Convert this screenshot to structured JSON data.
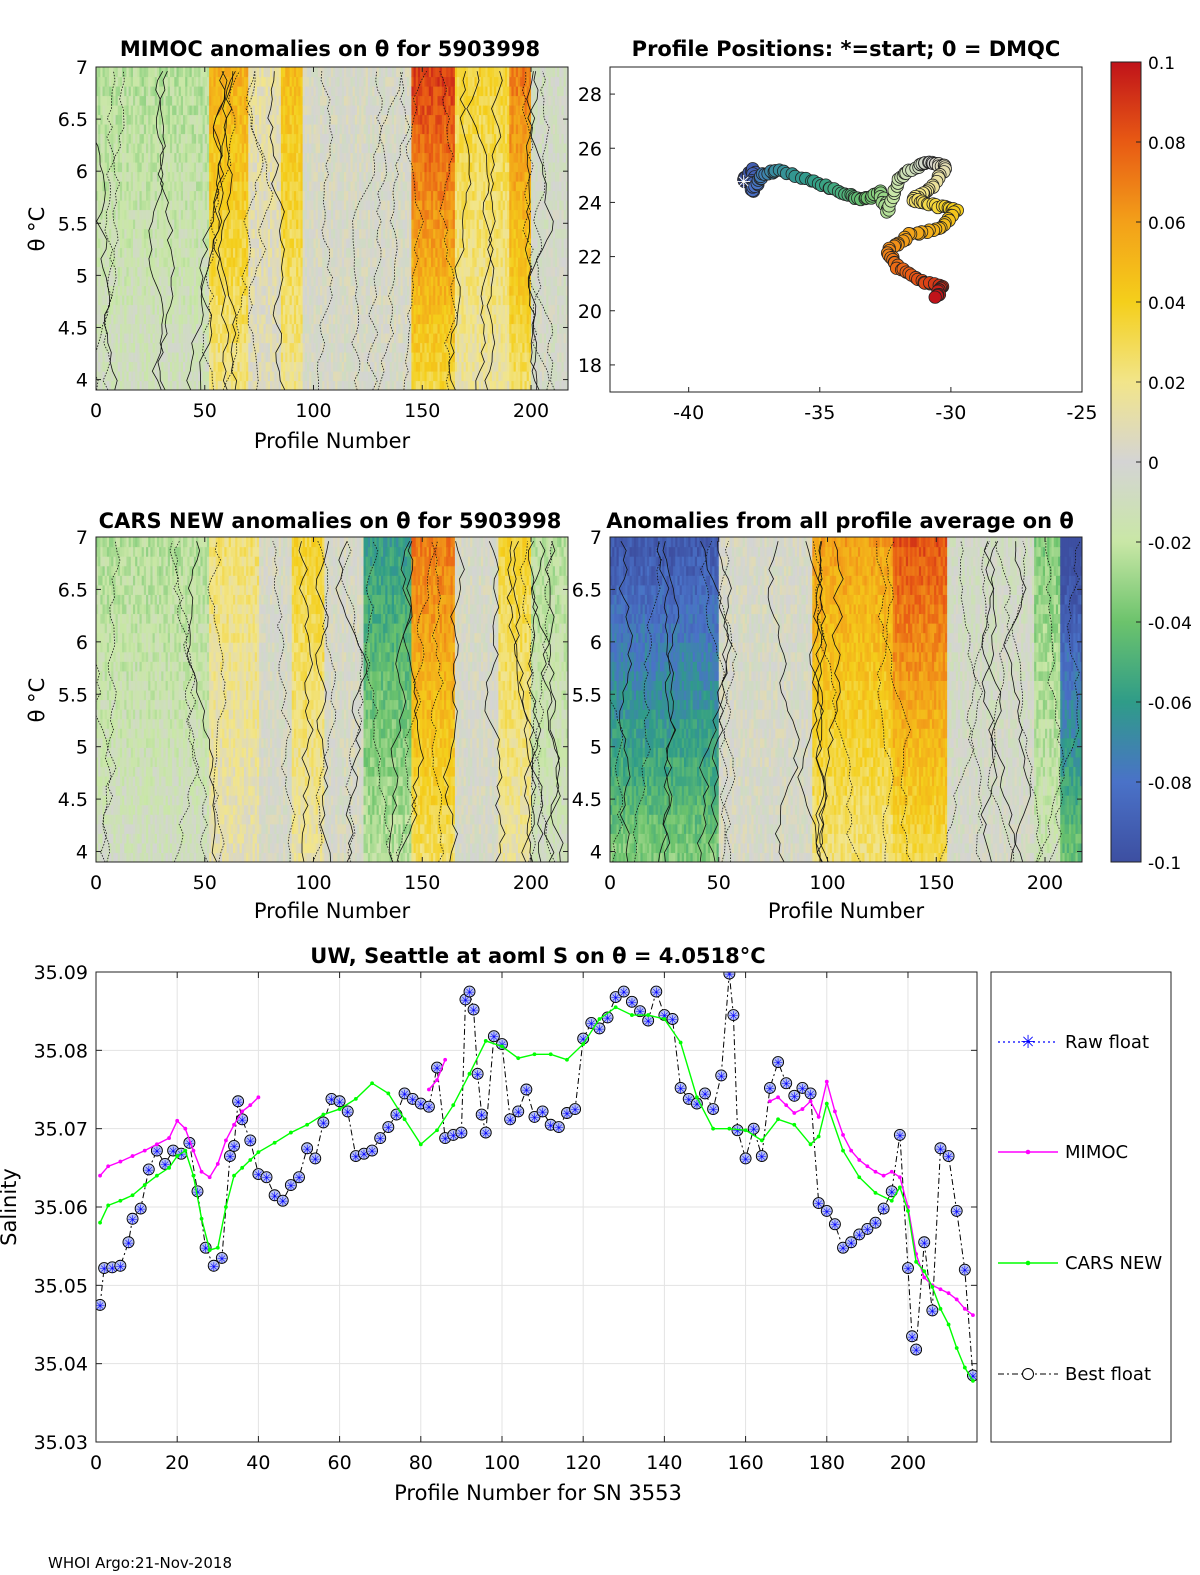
{
  "figure": {
    "footer": "WHOI Argo:21-Nov-2018",
    "colors": {
      "raw": "#0000ff",
      "mimoc": "#ff00ff",
      "cars": "#00ff00",
      "best": "#000000",
      "grid": "#e0e0e0",
      "gray": "#d2d2d2"
    }
  },
  "chart_data": [
    {
      "id": "mimoc",
      "type": "heatmap",
      "title": "MIMOC anomalies on θ  for 5903998",
      "xlabel": "Profile Number",
      "ylabel": "θ °C",
      "xlim": [
        0,
        217
      ],
      "ylim": [
        3.9,
        7.0
      ],
      "xticks": [
        "0",
        "50",
        "100",
        "150",
        "200"
      ],
      "yticks": [
        "4",
        "4.5",
        "5",
        "5.5",
        "6",
        "6.5",
        "7"
      ],
      "zlim": [
        -0.1,
        0.1
      ],
      "column_bands": [
        {
          "profiles": [
            0,
            52
          ],
          "anomaly": -0.02
        },
        {
          "profiles": [
            52,
            70
          ],
          "anomaly": 0.045
        },
        {
          "profiles": [
            70,
            85
          ],
          "anomaly": 0.01
        },
        {
          "profiles": [
            85,
            95
          ],
          "anomaly": 0.04
        },
        {
          "profiles": [
            95,
            145
          ],
          "anomaly": 0.0
        },
        {
          "profiles": [
            145,
            165
          ],
          "anomaly": 0.075
        },
        {
          "profiles": [
            165,
            190
          ],
          "anomaly": 0.03
        },
        {
          "profiles": [
            190,
            200
          ],
          "anomaly": 0.06
        },
        {
          "profiles": [
            200,
            217
          ],
          "anomaly": -0.005
        }
      ]
    },
    {
      "id": "positions",
      "type": "scatter",
      "title": "Profile Positions: *=start; 0 = DMQC",
      "xlim": [
        -43,
        -25
      ],
      "ylim": [
        17,
        29
      ],
      "xticks": [
        "-40",
        "-35",
        "-30",
        "-25"
      ],
      "yticks": [
        "18",
        "20",
        "22",
        "24",
        "26",
        "28"
      ],
      "start": {
        "lon": -37.9,
        "lat": 24.8
      },
      "track": [
        [
          -37.9,
          24.8
        ],
        [
          -37.5,
          25.2
        ],
        [
          -37.6,
          24.4
        ],
        [
          -37.2,
          25.0
        ],
        [
          -36.6,
          25.2
        ],
        [
          -35.0,
          24.7
        ],
        [
          -34.0,
          24.3
        ],
        [
          -33.3,
          24.1
        ],
        [
          -32.7,
          24.4
        ],
        [
          -32.4,
          23.6
        ],
        [
          -32.0,
          24.9
        ],
        [
          -31.2,
          25.4
        ],
        [
          -30.7,
          25.5
        ],
        [
          -30.2,
          25.3
        ],
        [
          -30.8,
          24.5
        ],
        [
          -31.5,
          24.1
        ],
        [
          -30.6,
          23.9
        ],
        [
          -29.8,
          23.7
        ],
        [
          -30.4,
          23.0
        ],
        [
          -31.6,
          22.8
        ],
        [
          -32.4,
          22.2
        ],
        [
          -32.0,
          21.6
        ],
        [
          -31.1,
          21.1
        ],
        [
          -30.3,
          20.9
        ],
        [
          -30.6,
          20.5
        ]
      ]
    },
    {
      "id": "cars",
      "type": "heatmap",
      "title": "CARS NEW anomalies on θ for 5903998",
      "xlabel": "Profile Number",
      "ylabel": "θ °C",
      "xlim": [
        0,
        217
      ],
      "ylim": [
        3.9,
        7.0
      ],
      "xticks": [
        "0",
        "50",
        "100",
        "150",
        "200"
      ],
      "yticks": [
        "4",
        "4.5",
        "5",
        "5.5",
        "6",
        "6.5",
        "7"
      ],
      "zlim": [
        -0.1,
        0.1
      ],
      "column_bands": [
        {
          "profiles": [
            0,
            52
          ],
          "anomaly": -0.02
        },
        {
          "profiles": [
            52,
            75
          ],
          "anomaly": 0.02
        },
        {
          "profiles": [
            75,
            90
          ],
          "anomaly": 0.0
        },
        {
          "profiles": [
            90,
            105
          ],
          "anomaly": 0.03
        },
        {
          "profiles": [
            105,
            123
          ],
          "anomaly": 0.0
        },
        {
          "profiles": [
            123,
            145
          ],
          "anomaly": -0.05
        },
        {
          "profiles": [
            145,
            165
          ],
          "anomaly": 0.06
        },
        {
          "profiles": [
            165,
            185
          ],
          "anomaly": 0.0
        },
        {
          "profiles": [
            185,
            200
          ],
          "anomaly": 0.03
        },
        {
          "profiles": [
            200,
            217
          ],
          "anomaly": -0.02
        }
      ]
    },
    {
      "id": "average",
      "type": "heatmap",
      "title": "Anomalies from all profile average on θ",
      "xlabel": "Profile Number",
      "xlim": [
        0,
        217
      ],
      "ylim": [
        3.9,
        7.0
      ],
      "xticks": [
        "0",
        "50",
        "100",
        "150",
        "200"
      ],
      "yticks": [
        "4",
        "4.5",
        "5",
        "5.5",
        "6",
        "6.5",
        "7"
      ],
      "zlim": [
        -0.1,
        0.1
      ],
      "column_bands": [
        {
          "profiles": [
            0,
            50
          ],
          "anomaly": -0.08
        },
        {
          "profiles": [
            50,
            93
          ],
          "anomaly": 0.0
        },
        {
          "profiles": [
            93,
            130
          ],
          "anomaly": 0.05
        },
        {
          "profiles": [
            130,
            155
          ],
          "anomaly": 0.07
        },
        {
          "profiles": [
            155,
            195
          ],
          "anomaly": -0.005
        },
        {
          "profiles": [
            195,
            207
          ],
          "anomaly": -0.03
        },
        {
          "profiles": [
            207,
            217
          ],
          "anomaly": -0.09
        }
      ]
    },
    {
      "id": "colorbar",
      "type": "colorbar",
      "ticks": [
        "0.1",
        "0.08",
        "0.06",
        "0.04",
        "0.02",
        "0",
        "-0.02",
        "-0.04",
        "-0.06",
        "-0.08",
        "-0.1"
      ],
      "range": [
        -0.1,
        0.1
      ]
    },
    {
      "id": "salinity",
      "type": "line",
      "title": "UW, Seattle at aoml S on θ = 4.0518°C",
      "xlabel": "Profile Number for SN 3553",
      "ylabel": "Salinity",
      "xlim": [
        0,
        217
      ],
      "ylim": [
        35.03,
        35.09
      ],
      "xticks": [
        "0",
        "20",
        "40",
        "60",
        "80",
        "100",
        "120",
        "140",
        "160",
        "180",
        "200"
      ],
      "yticks": [
        "35.03",
        "35.04",
        "35.05",
        "35.06",
        "35.07",
        "35.08",
        "35.09"
      ],
      "legend": [
        "Raw float",
        "MIMOC",
        "CARS NEW",
        "Best float"
      ],
      "series": [
        {
          "name": "Best float",
          "x": [
            1,
            2,
            4,
            6,
            8,
            9,
            11,
            13,
            15,
            17,
            19,
            21,
            23,
            25,
            27,
            29,
            31,
            33,
            34,
            35,
            36,
            38,
            40,
            42,
            44,
            46,
            48,
            50,
            52,
            54,
            56,
            58,
            60,
            62,
            64,
            66,
            68,
            70,
            72,
            74,
            76,
            78,
            80,
            82,
            84,
            86,
            88,
            90,
            91,
            92,
            93,
            94,
            95,
            96,
            98,
            100,
            102,
            104,
            106,
            108,
            110,
            112,
            114,
            116,
            118,
            120,
            122,
            124,
            126,
            128,
            130,
            132,
            134,
            136,
            138,
            140,
            142,
            144,
            146,
            148,
            150,
            152,
            154,
            156,
            157,
            158,
            160,
            162,
            164,
            166,
            168,
            170,
            172,
            174,
            176,
            178,
            180,
            182,
            184,
            186,
            188,
            190,
            192,
            194,
            196,
            198,
            200,
            201,
            202,
            204,
            206,
            208,
            210,
            212,
            214,
            216
          ],
          "y": [
            35.0475,
            35.0522,
            35.0523,
            35.0525,
            35.0555,
            35.0585,
            35.0598,
            35.0648,
            35.0672,
            35.0655,
            35.0672,
            35.0668,
            35.0682,
            35.062,
            35.0548,
            35.0525,
            35.0535,
            35.0665,
            35.0678,
            35.0735,
            35.0712,
            35.0685,
            35.0642,
            35.0638,
            35.0615,
            35.0608,
            35.0628,
            35.0638,
            35.0675,
            35.0662,
            35.0708,
            35.0738,
            35.0735,
            35.0722,
            35.0665,
            35.0668,
            35.0672,
            35.0688,
            35.0702,
            35.0718,
            35.0745,
            35.0738,
            35.0732,
            35.0728,
            35.0778,
            35.0688,
            35.0692,
            35.0695,
            35.0865,
            35.0875,
            35.0852,
            35.077,
            35.0718,
            35.0695,
            35.0818,
            35.0808,
            35.0712,
            35.0722,
            35.075,
            35.0715,
            35.0722,
            35.0705,
            35.0702,
            35.072,
            35.0725,
            35.0815,
            35.0835,
            35.0828,
            35.0842,
            35.0868,
            35.0875,
            35.0862,
            35.085,
            35.0838,
            35.0875,
            35.0845,
            35.084,
            35.0752,
            35.0738,
            35.0732,
            35.0745,
            35.0725,
            35.0768,
            35.0898,
            35.0845,
            35.0698,
            35.0662,
            35.07,
            35.0665,
            35.0752,
            35.0785,
            35.0758,
            35.0742,
            35.0752,
            35.0745,
            35.0605,
            35.0595,
            35.0578,
            35.0548,
            35.0555,
            35.0565,
            35.0572,
            35.058,
            35.0598,
            35.062,
            35.0692,
            35.0522,
            35.0435,
            35.0418,
            35.0555,
            35.0468,
            35.0675,
            35.0665,
            35.0595,
            35.052,
            35.0385
          ]
        },
        {
          "name": "MIMOC",
          "x": [
            1,
            3,
            6,
            9,
            12,
            15,
            18,
            20,
            22,
            24,
            26,
            28,
            30,
            32,
            34,
            36,
            38,
            40
          ],
          "y": [
            35.064,
            35.0652,
            35.0658,
            35.0665,
            35.0672,
            35.068,
            35.0688,
            35.071,
            35.07,
            35.0672,
            35.0645,
            35.0638,
            35.0655,
            35.0685,
            35.0705,
            35.0722,
            35.073,
            35.074
          ]
        },
        {
          "name": "MIMOC",
          "x": [
            82,
            84,
            86
          ],
          "y": [
            35.075,
            35.0762,
            35.0788
          ]
        },
        {
          "name": "MIMOC",
          "x": [
            166,
            168,
            170,
            172,
            174,
            176,
            178,
            180,
            182,
            184,
            186,
            188,
            190,
            192,
            194,
            196,
            198,
            200,
            202,
            204,
            206,
            208,
            210,
            212,
            214,
            216
          ],
          "y": [
            35.0735,
            35.074,
            35.073,
            35.072,
            35.0725,
            35.0735,
            35.0715,
            35.076,
            35.0722,
            35.0692,
            35.0672,
            35.066,
            35.0652,
            35.0645,
            35.064,
            35.0645,
            35.0638,
            35.06,
            35.054,
            35.051,
            35.05,
            35.0495,
            35.049,
            35.0482,
            35.047,
            35.0462
          ]
        },
        {
          "name": "CARS NEW",
          "x": [
            1,
            3,
            6,
            9,
            12,
            15,
            18,
            20,
            22,
            24,
            26,
            28,
            30,
            32,
            34,
            36,
            38,
            40,
            44,
            48,
            52,
            56,
            60,
            64,
            68,
            72,
            76,
            80,
            84,
            88,
            92,
            96,
            100,
            104,
            108,
            112,
            116,
            120,
            124,
            128,
            132,
            136,
            140,
            144,
            148,
            152,
            156,
            160,
            164,
            168,
            172,
            176,
            178,
            180,
            184,
            188,
            192,
            196,
            198,
            200,
            202,
            204,
            206,
            208,
            210,
            212,
            214,
            216
          ],
          "y": [
            35.058,
            35.0602,
            35.0608,
            35.0615,
            35.0628,
            35.064,
            35.065,
            35.0665,
            35.0672,
            35.064,
            35.0585,
            35.0545,
            35.0548,
            35.06,
            35.064,
            35.065,
            35.066,
            35.067,
            35.0682,
            35.0695,
            35.0705,
            35.0718,
            35.0725,
            35.0738,
            35.0758,
            35.0745,
            35.0712,
            35.068,
            35.0698,
            35.073,
            35.077,
            35.0812,
            35.0805,
            35.079,
            35.0795,
            35.0795,
            35.0788,
            35.0808,
            35.084,
            35.0855,
            35.0845,
            35.0845,
            35.084,
            35.081,
            35.074,
            35.07,
            35.07,
            35.0698,
            35.0685,
            35.0712,
            35.0705,
            35.068,
            35.069,
            35.0732,
            35.0672,
            35.0638,
            35.0618,
            35.0608,
            35.0625,
            35.0595,
            35.053,
            35.0518,
            35.0498,
            35.047,
            35.045,
            35.042,
            35.0395,
            35.0378
          ]
        }
      ]
    }
  ]
}
